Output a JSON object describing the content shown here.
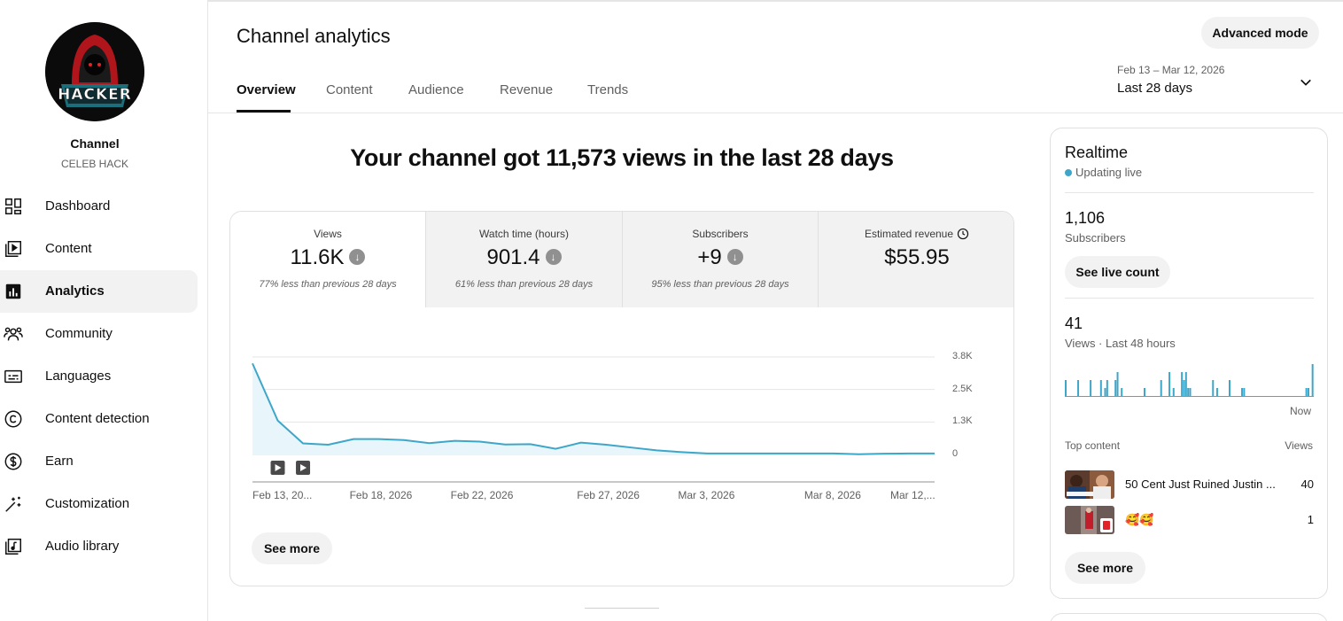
{
  "sidebar": {
    "channel_title": "Channel",
    "channel_name": "CELEB HACK",
    "avatar_text": "HACKER",
    "items": [
      {
        "label": "Dashboard",
        "icon": "dashboard-icon"
      },
      {
        "label": "Content",
        "icon": "content-icon"
      },
      {
        "label": "Analytics",
        "icon": "analytics-icon",
        "active": true
      },
      {
        "label": "Community",
        "icon": "community-icon"
      },
      {
        "label": "Languages",
        "icon": "subtitles-icon"
      },
      {
        "label": "Content detection",
        "icon": "copyright-icon"
      },
      {
        "label": "Earn",
        "icon": "dollar-icon"
      },
      {
        "label": "Customization",
        "icon": "magic-wand-icon"
      },
      {
        "label": "Audio library",
        "icon": "audio-library-icon"
      }
    ]
  },
  "header": {
    "title": "Channel analytics",
    "advanced_mode": "Advanced mode",
    "tabs": [
      "Overview",
      "Content",
      "Audience",
      "Revenue",
      "Trends"
    ],
    "active_tab": "Overview",
    "date_range": "Feb 13 – Mar 12, 2026",
    "date_preset": "Last 28 days"
  },
  "main": {
    "headline": "Your channel got 11,573 views in the last 28 days",
    "metrics": [
      {
        "label": "Views",
        "value": "11.6K",
        "comparison": "77% less than previous 28 days",
        "trend": "down"
      },
      {
        "label": "Watch time (hours)",
        "value": "901.4",
        "comparison": "61% less than previous 28 days",
        "trend": "down"
      },
      {
        "label": "Subscribers",
        "value": "+9",
        "comparison": "95% less than previous 28 days",
        "trend": "down"
      },
      {
        "label": "Estimated revenue",
        "value": "$55.95",
        "comparison": "",
        "trend": "none"
      }
    ],
    "see_more": "See more"
  },
  "chart_data": {
    "type": "area",
    "x": [
      "Feb 13",
      "Feb 14",
      "Feb 15",
      "Feb 16",
      "Feb 17",
      "Feb 18",
      "Feb 19",
      "Feb 20",
      "Feb 21",
      "Feb 22",
      "Feb 23",
      "Feb 24",
      "Feb 25",
      "Feb 26",
      "Feb 27",
      "Feb 28",
      "Mar 1",
      "Mar 2",
      "Mar 3",
      "Mar 4",
      "Mar 5",
      "Mar 6",
      "Mar 7",
      "Mar 8",
      "Mar 9",
      "Mar 10",
      "Mar 11",
      "Mar 12"
    ],
    "series": [
      {
        "values": [
          3550,
          1320,
          430,
          380,
          600,
          600,
          560,
          440,
          530,
          500,
          390,
          400,
          220,
          460,
          380,
          270,
          160,
          90,
          40,
          40,
          40,
          40,
          40,
          40,
          10,
          30,
          40,
          40
        ]
      }
    ],
    "x_tick_labels": [
      "Feb 13, 20...",
      "Feb 18, 2026",
      "Feb 22, 2026",
      "Feb 27, 2026",
      "Mar 3, 2026",
      "Mar 8, 2026",
      "Mar 12,..."
    ],
    "y_tick_labels": [
      "3.8K",
      "2.5K",
      "1.3K",
      "0"
    ],
    "ylim": [
      0,
      3800
    ],
    "grid": true,
    "video_markers": [
      "Feb 14",
      "Feb 15"
    ],
    "line_color": "#3ea6c9",
    "fill_color": "#e8f5fa"
  },
  "realtime": {
    "title": "Realtime",
    "status": "Updating live",
    "subscribers_value": "1,106",
    "subscribers_label": "Subscribers",
    "see_live_count": "See live count",
    "views_value": "41",
    "views_label": "Views · Last 48 hours",
    "now_label": "Now",
    "hourly_views": [
      2,
      0,
      0,
      0,
      0,
      0,
      2,
      0,
      0,
      0,
      0,
      0,
      2,
      0,
      0,
      0,
      0,
      2,
      0,
      1,
      2,
      0,
      0,
      0,
      2,
      3,
      0,
      1,
      0,
      0,
      0,
      0,
      0,
      0,
      0,
      0,
      0,
      0,
      1,
      0,
      0,
      0,
      0,
      0,
      0,
      0,
      2,
      0,
      0,
      0,
      3,
      0,
      1,
      0,
      0,
      0,
      3,
      2,
      3,
      1,
      1,
      0,
      0,
      0,
      0,
      0,
      0,
      0,
      0,
      0,
      0,
      2,
      0,
      1,
      0,
      0,
      0,
      0,
      0,
      2,
      0,
      0,
      0,
      0,
      0,
      1,
      1,
      0,
      0,
      0,
      0,
      0,
      0,
      0,
      0,
      0,
      0,
      0,
      0,
      0,
      0,
      0,
      0,
      0,
      0,
      0,
      0,
      0,
      0,
      0,
      0,
      0,
      0,
      0,
      0,
      0,
      1,
      1,
      0,
      4
    ],
    "top_content_label": "Top content",
    "views_col_label": "Views",
    "top_content": [
      {
        "title": "50 Cent Just Ruined Justin ...",
        "views": "40"
      },
      {
        "title": "🥰🥰",
        "views": "1"
      }
    ],
    "see_more": "See more",
    "accent_color": "#3ea6c9"
  }
}
